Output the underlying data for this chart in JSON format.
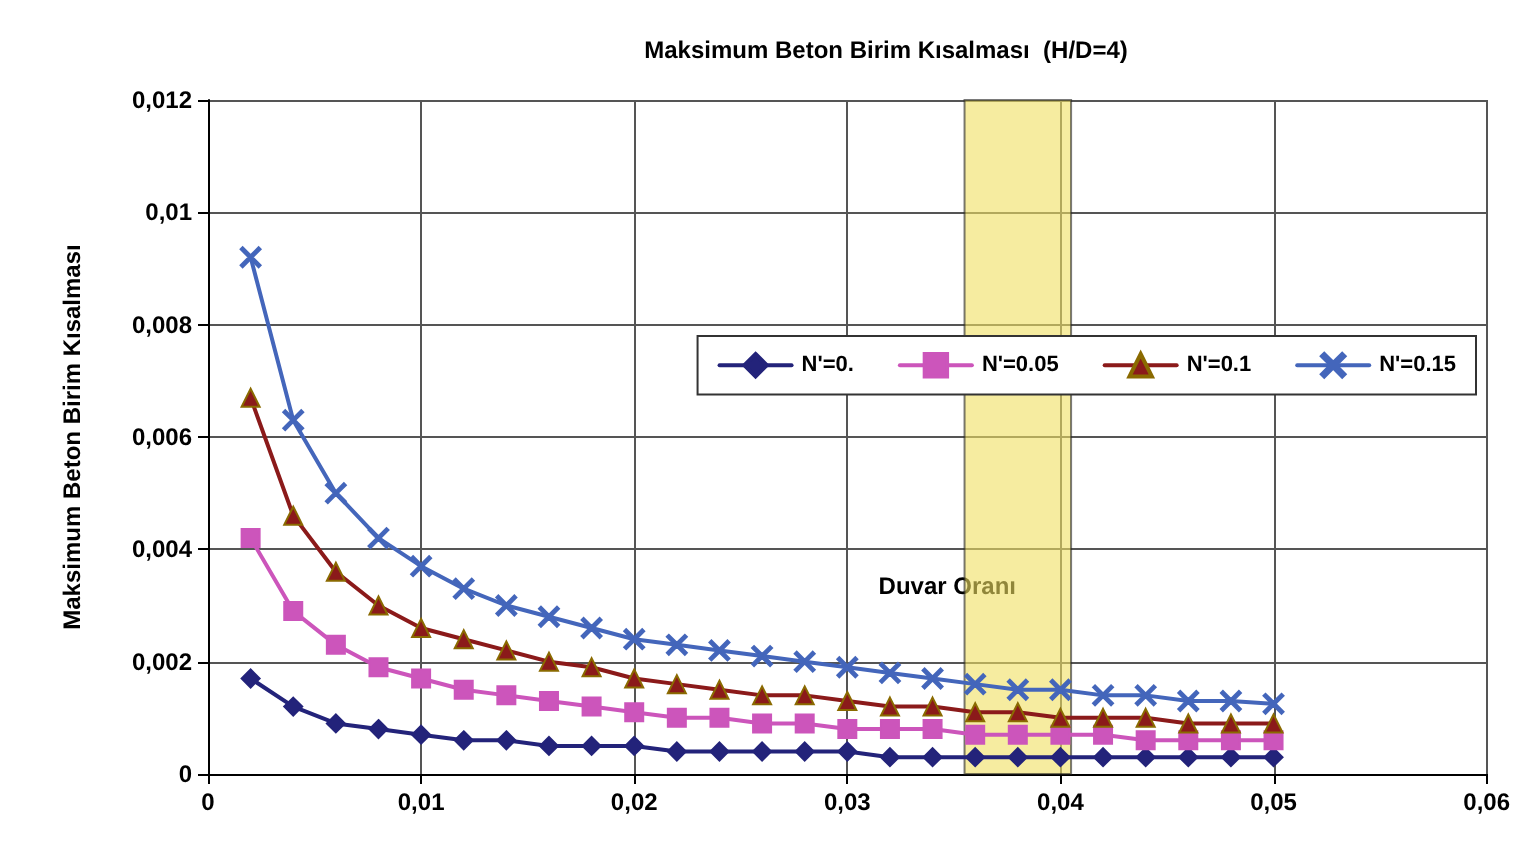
{
  "chart_data": {
    "type": "line",
    "title": "Maksimum Beton Birim Kısalması  (H/D=4)",
    "xlabel": "Duvar Oranı",
    "ylabel": "Maksimum Beton Birim Kısalması",
    "x": [
      0.002,
      0.004,
      0.006,
      0.008,
      0.01,
      0.012,
      0.014,
      0.016,
      0.018,
      0.02,
      0.022,
      0.024,
      0.026,
      0.028,
      0.03,
      0.032,
      0.034,
      0.036,
      0.038,
      0.04,
      0.042,
      0.044,
      0.046,
      0.048,
      0.05
    ],
    "series": [
      {
        "name": "N'=0.",
        "color": "#23237a",
        "marker": "diamond",
        "values": [
          0.0017,
          0.0012,
          0.0009,
          0.0008,
          0.0007,
          0.0006,
          0.0006,
          0.0005,
          0.0005,
          0.0005,
          0.0004,
          0.0004,
          0.0004,
          0.0004,
          0.0004,
          0.0003,
          0.0003,
          0.0003,
          0.0003,
          0.0003,
          0.0003,
          0.0003,
          0.0003,
          0.0003,
          0.0003
        ]
      },
      {
        "name": "N'=0.05",
        "color": "#cc55bb",
        "marker": "square",
        "values": [
          0.0042,
          0.0029,
          0.0023,
          0.0019,
          0.0017,
          0.0015,
          0.0014,
          0.0013,
          0.0012,
          0.0011,
          0.001,
          0.001,
          0.0009,
          0.0009,
          0.0008,
          0.0008,
          0.0008,
          0.0007,
          0.0007,
          0.0007,
          0.0007,
          0.0006,
          0.0006,
          0.0006,
          0.0006
        ]
      },
      {
        "name": "N'=0.1",
        "color": "#8b1a1a",
        "marker": "triangle",
        "values": [
          0.0067,
          0.0046,
          0.0036,
          0.003,
          0.0026,
          0.0024,
          0.0022,
          0.002,
          0.0019,
          0.0017,
          0.0016,
          0.0015,
          0.0014,
          0.0014,
          0.0013,
          0.0012,
          0.0012,
          0.0011,
          0.0011,
          0.001,
          0.001,
          0.001,
          0.0009,
          0.0009,
          0.0009
        ]
      },
      {
        "name": "N'=0.15",
        "color": "#4466bb",
        "marker": "cross",
        "values": [
          0.0092,
          0.0063,
          0.005,
          0.0042,
          0.0037,
          0.0033,
          0.003,
          0.0028,
          0.0026,
          0.0024,
          0.0023,
          0.0022,
          0.0021,
          0.002,
          0.0019,
          0.0018,
          0.0017,
          0.0016,
          0.0015,
          0.0015,
          0.0014,
          0.0014,
          0.0013,
          0.0013,
          0.00125
        ]
      }
    ],
    "xlim": [
      0,
      0.06
    ],
    "xticks": [
      0,
      {
        "value": 0.01,
        "label": "0,01"
      },
      {
        "value": 0.02,
        "label": "0,02"
      },
      {
        "value": 0.03,
        "label": "0,03"
      },
      {
        "value": 0.04,
        "label": "0,04"
      },
      {
        "value": 0.05,
        "label": "0,05"
      },
      {
        "value": 0.06,
        "label": "0,06"
      }
    ],
    "ylim": [
      0,
      0.012
    ],
    "yticks": [
      0,
      {
        "value": 0.002,
        "label": "0,002"
      },
      {
        "value": 0.004,
        "label": "0,004"
      },
      {
        "value": 0.006,
        "label": "0,006"
      },
      {
        "value": 0.008,
        "label": "0,008"
      },
      {
        "value": 0.01,
        "label": "0,01"
      },
      {
        "value": 0.012,
        "label": "0,012"
      }
    ],
    "bands": [
      {
        "axis": "x",
        "from": 0.0355,
        "to": 0.0405,
        "color": "#f0e060"
      }
    ],
    "grid": true,
    "legend": "top right",
    "line_style": "solid"
  }
}
